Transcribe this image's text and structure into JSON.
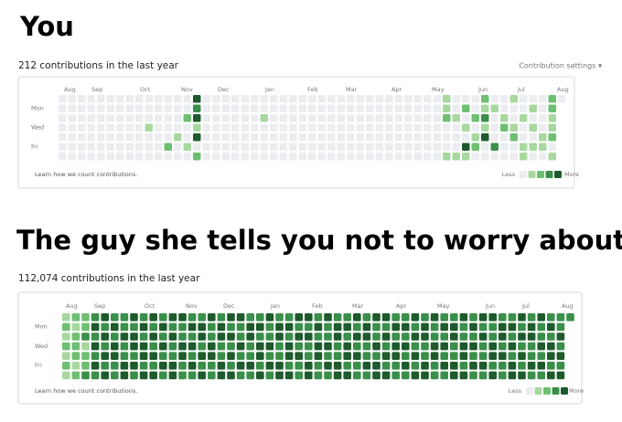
{
  "panels": [
    {
      "heading": "You",
      "summary": "212 contributions in the last year",
      "settings": "Contribution settings ▾",
      "months": [
        "Aug",
        "Sep",
        "Oct",
        "Nov",
        "Dec",
        "Jan",
        "Feb",
        "Mar",
        "Apr",
        "May",
        "Jun",
        "Jul",
        "Aug"
      ],
      "days": [
        "Mon",
        "Wed",
        "Fri"
      ],
      "footer": "Learn how we count contributions.",
      "legend_less": "Less",
      "legend_more": "More",
      "level_colors": [
        "#ebedf0",
        "#a8d8a0",
        "#6fbf73",
        "#3a8f4a",
        "#1e5a2c"
      ],
      "grid": [
        [
          0,
          0,
          0,
          0,
          0,
          0,
          0,
          0,
          0,
          0,
          0,
          0,
          0,
          0,
          4,
          0,
          0,
          0,
          0,
          0,
          0,
          0,
          0,
          0,
          0,
          0,
          0,
          0,
          0,
          0,
          0,
          0,
          0,
          0,
          0,
          0,
          0,
          0,
          0,
          0,
          1,
          0,
          0,
          0,
          2,
          0,
          0,
          1,
          0,
          0,
          0,
          2,
          0
        ],
        [
          0,
          0,
          0,
          0,
          0,
          0,
          0,
          0,
          0,
          0,
          0,
          0,
          0,
          0,
          3,
          0,
          0,
          0,
          0,
          0,
          0,
          0,
          0,
          0,
          0,
          0,
          0,
          0,
          0,
          0,
          0,
          0,
          0,
          0,
          0,
          0,
          0,
          0,
          0,
          0,
          1,
          0,
          2,
          0,
          1,
          1,
          0,
          0,
          0,
          1,
          0,
          2,
          null
        ],
        [
          0,
          0,
          0,
          0,
          0,
          0,
          0,
          0,
          0,
          0,
          0,
          0,
          0,
          2,
          4,
          0,
          0,
          0,
          0,
          0,
          0,
          1,
          0,
          0,
          0,
          0,
          0,
          0,
          0,
          0,
          0,
          0,
          0,
          0,
          0,
          0,
          0,
          0,
          0,
          0,
          2,
          1,
          0,
          2,
          3,
          0,
          1,
          0,
          1,
          0,
          0,
          1,
          null
        ],
        [
          0,
          0,
          0,
          0,
          0,
          0,
          0,
          0,
          0,
          1,
          0,
          0,
          0,
          0,
          1,
          0,
          0,
          0,
          0,
          0,
          0,
          0,
          0,
          0,
          0,
          0,
          0,
          0,
          0,
          0,
          0,
          0,
          0,
          0,
          0,
          0,
          0,
          0,
          0,
          0,
          0,
          0,
          1,
          0,
          1,
          0,
          2,
          1,
          0,
          1,
          0,
          1,
          null
        ],
        [
          0,
          0,
          0,
          0,
          0,
          0,
          0,
          0,
          0,
          0,
          0,
          0,
          1,
          0,
          4,
          0,
          0,
          0,
          0,
          0,
          0,
          0,
          0,
          0,
          0,
          0,
          0,
          0,
          0,
          0,
          0,
          0,
          0,
          0,
          0,
          0,
          0,
          0,
          0,
          0,
          0,
          0,
          0,
          1,
          4,
          0,
          0,
          2,
          0,
          0,
          1,
          2,
          null
        ],
        [
          0,
          0,
          0,
          0,
          0,
          0,
          0,
          0,
          0,
          0,
          0,
          2,
          0,
          1,
          0,
          0,
          0,
          0,
          0,
          0,
          0,
          0,
          0,
          0,
          0,
          0,
          0,
          0,
          0,
          0,
          0,
          0,
          0,
          0,
          0,
          0,
          0,
          0,
          0,
          0,
          0,
          0,
          4,
          2,
          0,
          3,
          0,
          0,
          1,
          1,
          1,
          0,
          null
        ],
        [
          0,
          0,
          0,
          0,
          0,
          0,
          0,
          0,
          0,
          0,
          0,
          0,
          0,
          0,
          2,
          0,
          0,
          0,
          0,
          0,
          0,
          0,
          0,
          0,
          0,
          0,
          0,
          0,
          0,
          0,
          0,
          0,
          0,
          0,
          0,
          0,
          0,
          0,
          0,
          0,
          1,
          1,
          1,
          0,
          0,
          0,
          0,
          0,
          1,
          0,
          0,
          1,
          null
        ]
      ]
    },
    {
      "heading": "The guy she tells you not to worry about",
      "summary": "112,074 contributions in the last year",
      "months": [
        "Aug",
        "Sep",
        "Oct",
        "Nov",
        "Dec",
        "Jan",
        "Feb",
        "Mar",
        "Apr",
        "May",
        "Jun",
        "Jul",
        "Aug"
      ],
      "days": [
        "Mon",
        "Wed",
        "Fri"
      ],
      "footer": "Learn how we count contributions.",
      "legend_less": "Less",
      "legend_more": "More",
      "level_colors": [
        "#ebedf0",
        "#a8d8a0",
        "#6fbf73",
        "#3a8f4a",
        "#1e5a2c"
      ],
      "grid": [
        [
          1,
          2,
          2,
          3,
          4,
          3,
          3,
          4,
          3,
          4,
          3,
          4,
          4,
          3,
          3,
          4,
          3,
          4,
          4,
          3,
          3,
          4,
          3,
          3,
          4,
          4,
          3,
          4,
          3,
          3,
          4,
          3,
          4,
          4,
          3,
          3,
          4,
          3,
          4,
          3,
          3,
          4,
          3,
          4,
          4,
          3,
          3,
          4,
          3,
          4,
          3,
          3,
          3
        ],
        [
          2,
          1,
          2,
          4,
          3,
          4,
          3,
          3,
          4,
          3,
          4,
          3,
          3,
          4,
          4,
          3,
          4,
          3,
          3,
          4,
          4,
          3,
          4,
          4,
          3,
          3,
          4,
          3,
          4,
          4,
          3,
          4,
          3,
          3,
          4,
          4,
          3,
          4,
          3,
          4,
          4,
          3,
          4,
          3,
          3,
          4,
          4,
          3,
          4,
          3,
          4,
          3,
          null
        ],
        [
          1,
          2,
          3,
          3,
          4,
          3,
          4,
          4,
          3,
          4,
          3,
          4,
          3,
          3,
          4,
          3,
          4,
          4,
          3,
          4,
          3,
          3,
          4,
          3,
          4,
          4,
          3,
          3,
          4,
          3,
          4,
          4,
          3,
          4,
          3,
          3,
          4,
          4,
          3,
          3,
          4,
          3,
          3,
          4,
          3,
          4,
          3,
          4,
          4,
          3,
          3,
          4,
          null
        ],
        [
          2,
          2,
          1,
          4,
          3,
          4,
          3,
          4,
          4,
          3,
          4,
          3,
          4,
          4,
          3,
          4,
          3,
          3,
          4,
          3,
          4,
          4,
          3,
          4,
          3,
          3,
          4,
          4,
          3,
          4,
          3,
          3,
          4,
          3,
          4,
          4,
          3,
          3,
          4,
          4,
          3,
          4,
          4,
          3,
          4,
          3,
          4,
          3,
          3,
          4,
          4,
          3,
          null
        ],
        [
          1,
          2,
          2,
          3,
          4,
          4,
          3,
          3,
          4,
          4,
          3,
          3,
          4,
          3,
          4,
          4,
          3,
          4,
          3,
          3,
          4,
          3,
          3,
          4,
          4,
          3,
          4,
          3,
          3,
          4,
          4,
          3,
          3,
          4,
          4,
          3,
          4,
          3,
          4,
          3,
          3,
          4,
          3,
          3,
          4,
          4,
          3,
          4,
          3,
          3,
          4,
          4,
          null
        ],
        [
          2,
          1,
          2,
          4,
          3,
          3,
          4,
          4,
          3,
          3,
          4,
          4,
          3,
          4,
          3,
          3,
          4,
          3,
          4,
          4,
          3,
          4,
          4,
          3,
          3,
          4,
          3,
          4,
          4,
          3,
          3,
          4,
          4,
          3,
          3,
          4,
          3,
          4,
          3,
          4,
          4,
          3,
          4,
          4,
          3,
          3,
          4,
          3,
          4,
          4,
          3,
          3,
          null
        ],
        [
          1,
          2,
          3,
          3,
          4,
          3,
          4,
          3,
          4,
          4,
          3,
          4,
          3,
          3,
          4,
          3,
          4,
          4,
          3,
          3,
          4,
          3,
          4,
          4,
          3,
          4,
          3,
          3,
          4,
          4,
          3,
          3,
          4,
          4,
          3,
          3,
          4,
          4,
          3,
          3,
          4,
          4,
          3,
          3,
          4,
          3,
          4,
          4,
          3,
          3,
          4,
          4,
          null
        ]
      ]
    }
  ]
}
